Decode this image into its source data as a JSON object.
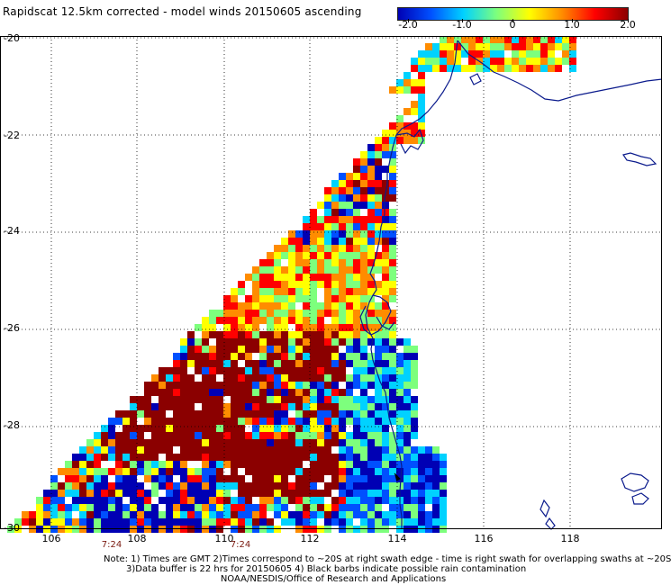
{
  "title": "Rapidscat 12.5km corrected - model winds 20150605 ascending",
  "colorbar": {
    "labels": [
      "-2.0",
      "-1.0",
      "0",
      "1.0",
      "2.0"
    ],
    "range": [
      -2.0,
      2.0
    ],
    "colors": [
      "#0000b4",
      "#0050ff",
      "#00d2ff",
      "#7dff7d",
      "#ffff00",
      "#ff8c00",
      "#ff0000",
      "#8b0000"
    ]
  },
  "axes": {
    "lon_labels": [
      "106",
      "108",
      "110",
      "112",
      "114",
      "116",
      "118"
    ],
    "lat_labels": [
      "-20",
      "-22",
      "-24",
      "-26",
      "-28",
      "-30"
    ],
    "lon_range": [
      105,
      120
    ],
    "lat_range": [
      -30,
      -20
    ],
    "gridlines": "dotted"
  },
  "swath_times": [
    "7:24",
    "7:24"
  ],
  "notes": [
    "Note: 1) Times are GMT 2)Times correspond to ~20S at right swath edge - time is right swath for overlapping swaths at ~20S",
    "3)Data buffer is 22 hrs for 20150605 4) Black barbs indicate possible rain contamination"
  ],
  "credit": "NOAA/NESDIS/Office of Research and Applications",
  "coast_color": "#0a1a8c"
}
